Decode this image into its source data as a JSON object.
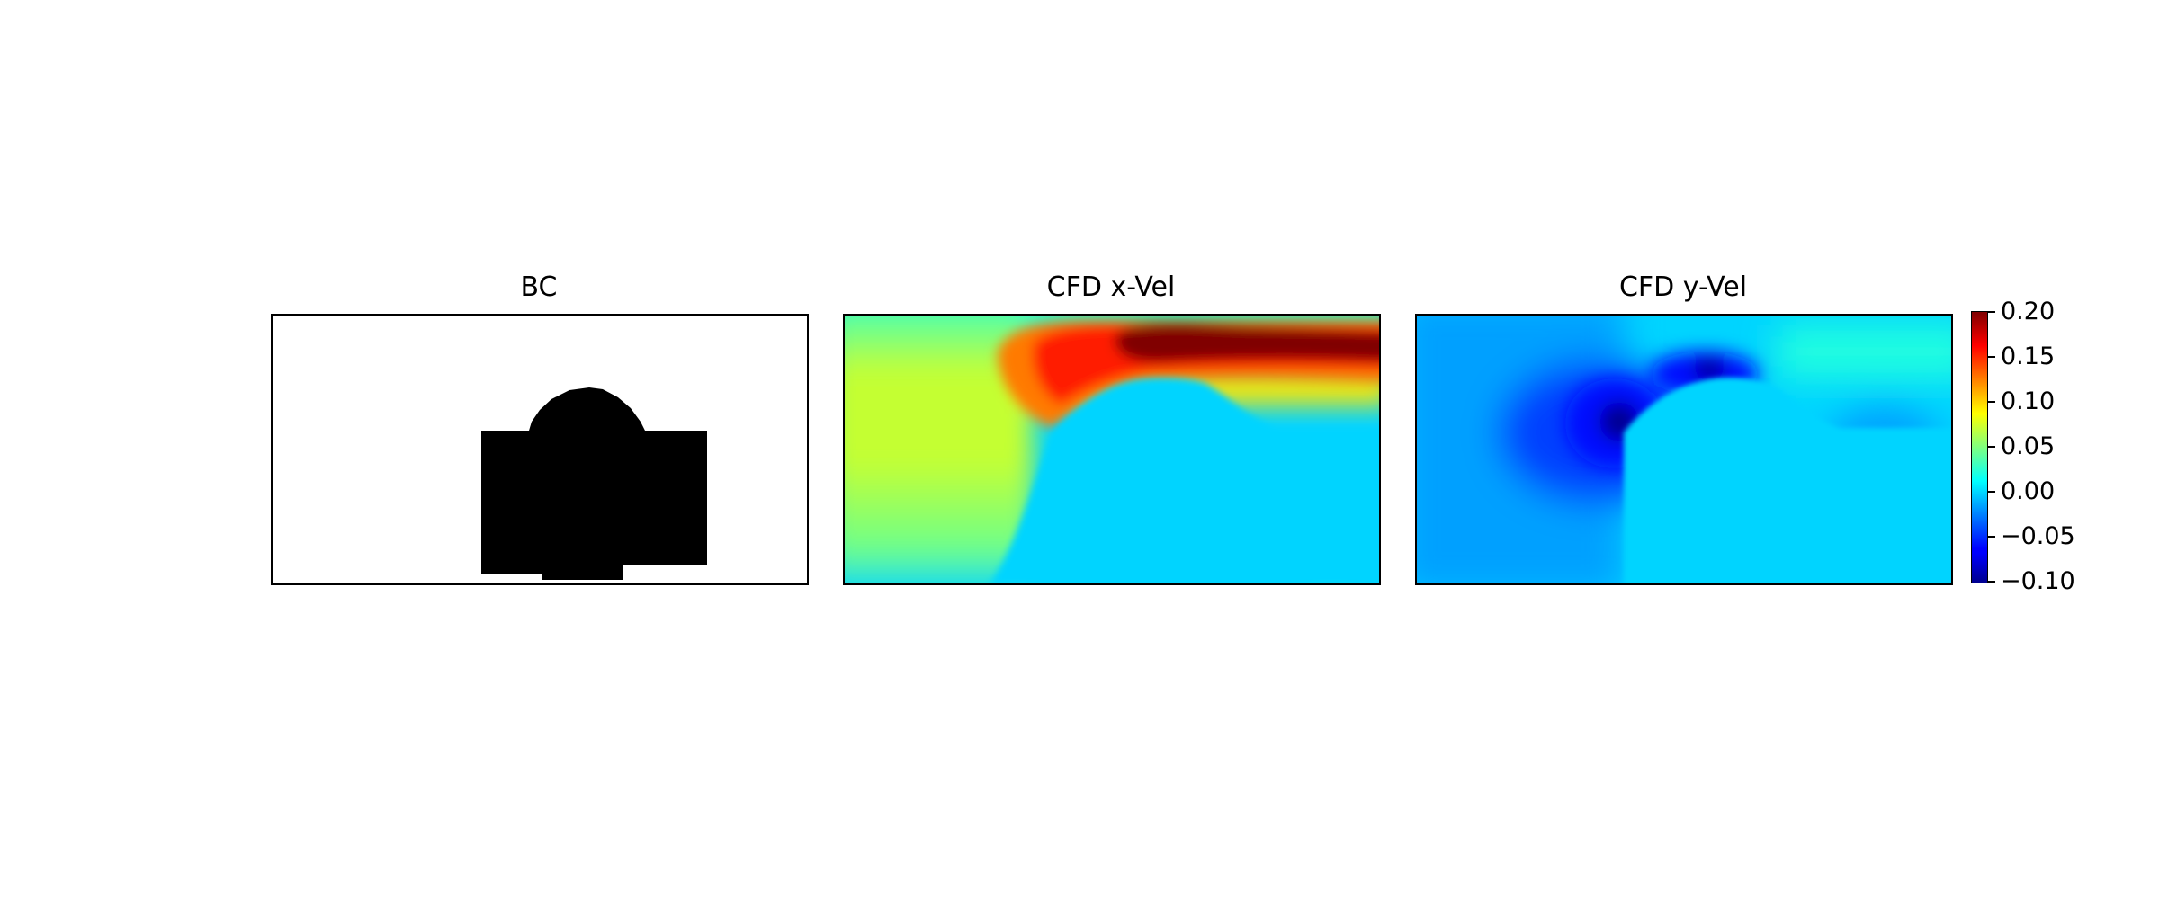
{
  "chart_data": [
    {
      "type": "heatmap",
      "title": "BC",
      "description_values": {
        "fluid": 0,
        "solid": 1
      },
      "colormap": "binary",
      "colors": {
        "fluid": "#ffffff",
        "solid": "#000000"
      },
      "grid": false,
      "axes_ticks": false
    },
    {
      "type": "heatmap",
      "title": "CFD x-Vel",
      "colormap": "jet",
      "clim": [
        -0.1,
        0.2
      ],
      "grid": false,
      "axes_ticks": false
    },
    {
      "type": "heatmap",
      "title": "CFD y-Vel",
      "colormap": "jet",
      "clim": [
        -0.1,
        0.2
      ],
      "grid": false,
      "axes_ticks": false
    }
  ],
  "colorbar": {
    "colormap": "jet",
    "range": [
      -0.1,
      0.2
    ],
    "ticks": [
      0.2,
      0.15,
      0.1,
      0.05,
      0.0,
      -0.05,
      -0.1
    ],
    "tick_labels": [
      "0.20",
      "0.15",
      "0.10",
      "0.05",
      "0.00",
      "−0.05",
      "−0.10"
    ]
  }
}
